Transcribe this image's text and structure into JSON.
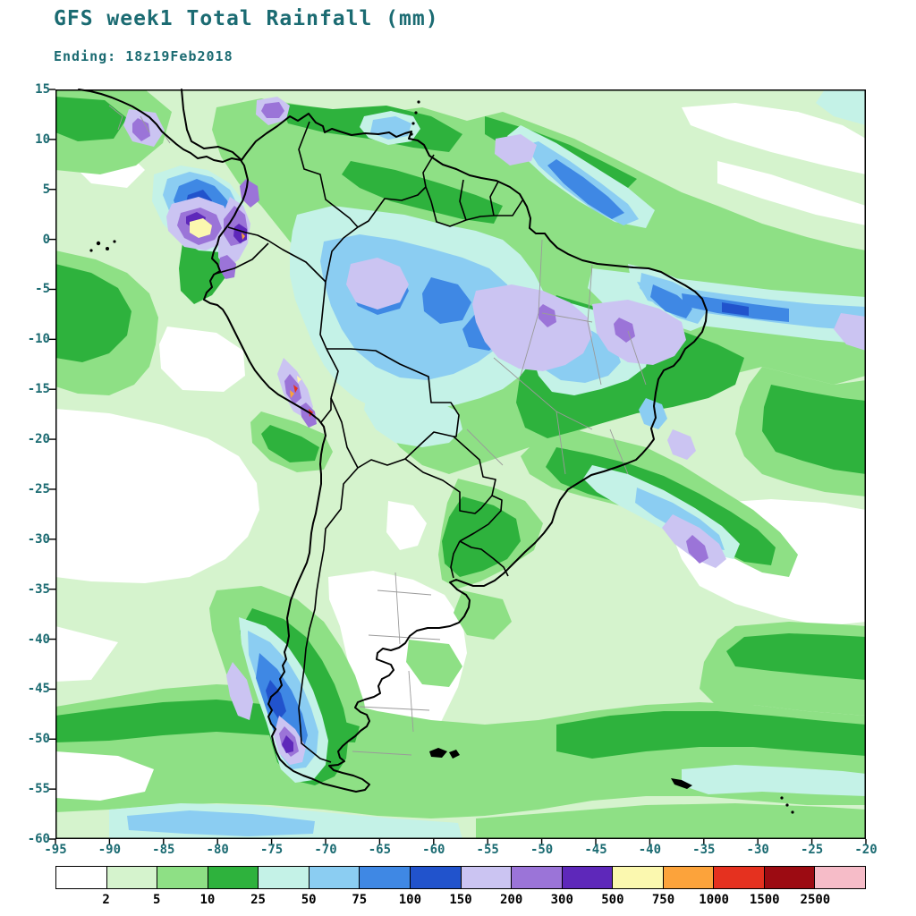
{
  "header": {
    "title": "GFS week1 Total Rainfall (mm)",
    "subtitle": "Ending: 18z19Feb2018"
  },
  "map": {
    "region": "South America",
    "variable": "Total Rainfall",
    "units": "mm",
    "model": "GFS",
    "period": "week1",
    "valid_ending": "18z19Feb2018"
  },
  "axes": {
    "lat_ticks": [
      15,
      10,
      5,
      0,
      -5,
      -10,
      -15,
      -20,
      -25,
      -30,
      -35,
      -40,
      -45,
      -50,
      -55,
      -60
    ],
    "lon_ticks": [
      -95,
      -90,
      -85,
      -80,
      -75,
      -70,
      -65,
      -60,
      -55,
      -50,
      -45,
      -40,
      -35,
      -30,
      -25,
      -20
    ],
    "lat_range": [
      15,
      -60
    ],
    "lon_range": [
      -95,
      -20
    ]
  },
  "legend": {
    "labels": [
      "2",
      "5",
      "10",
      "25",
      "50",
      "75",
      "100",
      "150",
      "200",
      "300",
      "500",
      "750",
      "1000",
      "1500",
      "2500"
    ],
    "colors": [
      "#ffffff",
      "#d5f3cd",
      "#8ee085",
      "#2eb23d",
      "#c4f2e7",
      "#8bcdf2",
      "#3f88e4",
      "#2153cc",
      "#cbc4f2",
      "#9b74d8",
      "#5e28ba",
      "#fbf8af",
      "#fca33b",
      "#e5311f",
      "#9c0b12",
      "#f6bcc8"
    ]
  },
  "style": {
    "annotation_color": "#1b6b72",
    "coastline_color": "#000000",
    "state_border_color": "#9a9a9a"
  }
}
